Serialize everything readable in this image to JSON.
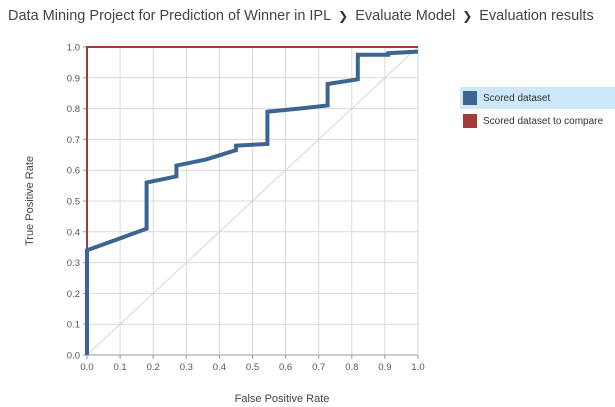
{
  "breadcrumb": {
    "items": [
      "Data Mining Project for Prediction of Winner in IPL",
      "Evaluate Model",
      "Evaluation results"
    ]
  },
  "legend": {
    "items": [
      {
        "label": "Scored dataset",
        "color": "#3d6591",
        "selected": true
      },
      {
        "label": "Scored dataset to compare",
        "color": "#a33b3b",
        "selected": false
      }
    ]
  },
  "chart_data": {
    "type": "line",
    "xlabel": "False Positive Rate",
    "ylabel": "True Positive Rate",
    "xlim": [
      0,
      1
    ],
    "ylim": [
      0,
      1
    ],
    "xticks": [
      "0.0",
      "0.1",
      "0.2",
      "0.3",
      "0.4",
      "0.5",
      "0.6",
      "0.7",
      "0.8",
      "0.9",
      "1.0"
    ],
    "yticks": [
      "0.0",
      "0.1",
      "0.2",
      "0.3",
      "0.4",
      "0.5",
      "0.6",
      "0.7",
      "0.8",
      "0.9",
      "1.0"
    ],
    "grid": true,
    "legend_position": "right",
    "diagonal_reference": true,
    "series": [
      {
        "name": "Scored dataset",
        "color": "#3d6591",
        "points": [
          [
            0.0,
            0.0
          ],
          [
            0.0,
            0.34
          ],
          [
            0.18,
            0.41
          ],
          [
            0.18,
            0.56
          ],
          [
            0.27,
            0.58
          ],
          [
            0.27,
            0.615
          ],
          [
            0.36,
            0.635
          ],
          [
            0.45,
            0.665
          ],
          [
            0.45,
            0.68
          ],
          [
            0.545,
            0.685
          ],
          [
            0.545,
            0.79
          ],
          [
            0.64,
            0.8
          ],
          [
            0.727,
            0.81
          ],
          [
            0.727,
            0.88
          ],
          [
            0.818,
            0.895
          ],
          [
            0.818,
            0.975
          ],
          [
            0.91,
            0.975
          ],
          [
            0.91,
            0.98
          ],
          [
            1.0,
            0.985
          ]
        ]
      },
      {
        "name": "Scored dataset to compare",
        "color": "#a33b3b",
        "points": [
          [
            0.0,
            0.0
          ],
          [
            0.0,
            1.0
          ],
          [
            1.0,
            1.0
          ]
        ]
      }
    ]
  }
}
